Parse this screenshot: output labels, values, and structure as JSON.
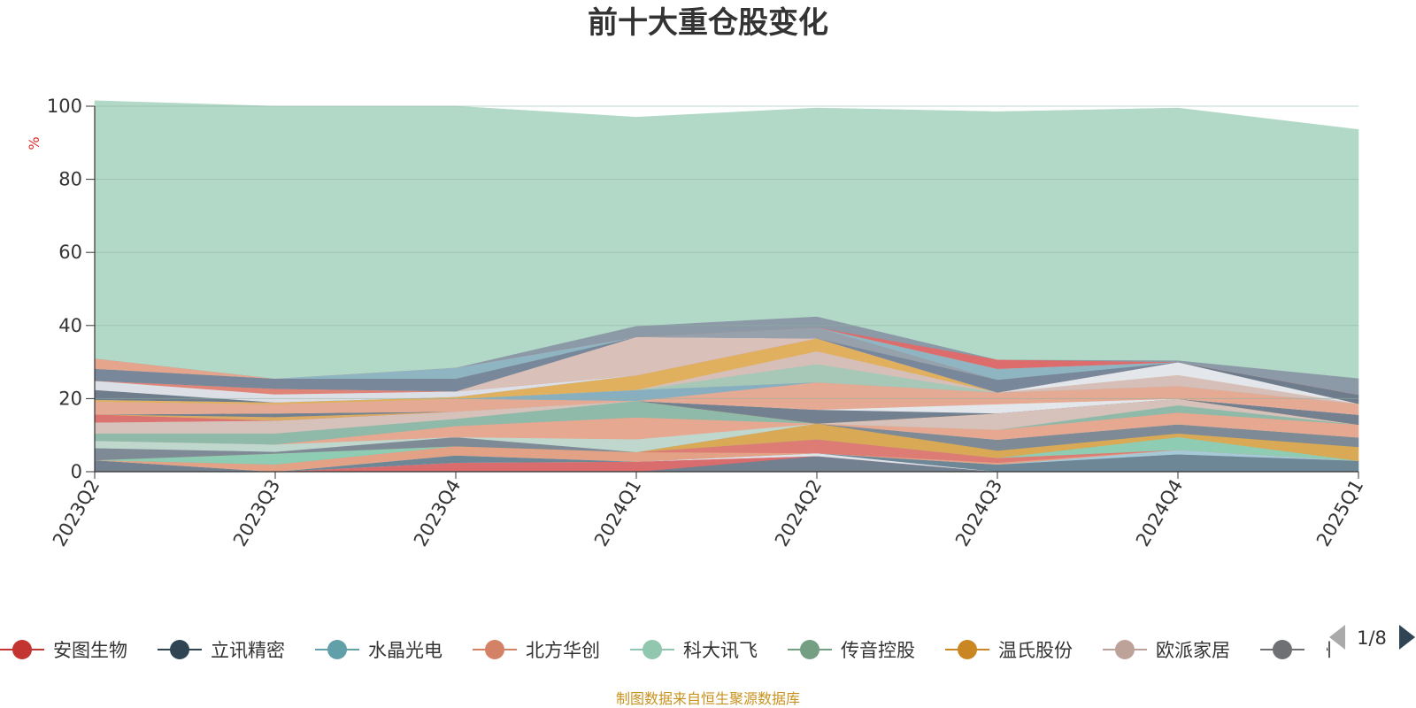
{
  "chart_data": {
    "type": "area",
    "stacked": true,
    "title": "前十大重仓股变化",
    "ylabel": "%",
    "ylim": [
      0,
      100
    ],
    "yticks": [
      0,
      20,
      40,
      60,
      80,
      100
    ],
    "categories": [
      "2023Q2",
      "2023Q3",
      "2023Q4",
      "2024Q1",
      "2024Q2",
      "2024Q3",
      "2024Q4",
      "2025Q1"
    ],
    "grid": true,
    "legend_position": "bottom",
    "series": [
      {
        "color": "#73808f",
        "values": [
          3.2,
          0.0,
          0.0,
          0.0,
          4.3,
          0.0,
          0.0,
          0.0
        ]
      },
      {
        "color": "#d96c6c",
        "values": [
          0.0,
          0.0,
          2.5,
          2.8,
          0.0,
          0.0,
          0.0,
          0.0
        ]
      },
      {
        "color": "#dfe3ea",
        "values": [
          0.0,
          0.0,
          0.0,
          0.0,
          0.8,
          0.0,
          0.0,
          0.0
        ]
      },
      {
        "color": "#6d8796",
        "values": [
          0.0,
          0.0,
          2.0,
          0.0,
          0.0,
          2.0,
          4.8,
          3.0
        ]
      },
      {
        "color": "#a6c9d8",
        "values": [
          0.0,
          0.0,
          0.0,
          0.0,
          0.0,
          0.0,
          1.2,
          0.0
        ]
      },
      {
        "color": "#e3a286",
        "values": [
          0.0,
          2.0,
          2.5,
          2.6,
          0.0,
          0.5,
          0.0,
          0.0
        ]
      },
      {
        "color": "#dd7c74",
        "values": [
          0.0,
          0.0,
          0.0,
          0.0,
          3.8,
          1.3,
          0.0,
          0.0
        ]
      },
      {
        "color": "#8ecdb4",
        "values": [
          0.0,
          3.0,
          0.0,
          0.0,
          0.0,
          0.0,
          3.5,
          0.0
        ]
      },
      {
        "color": "#d9a955",
        "values": [
          0.0,
          0.0,
          0.0,
          0.0,
          4.3,
          2.0,
          1.0,
          3.8
        ]
      },
      {
        "color": "#7f8a97",
        "values": [
          3.3,
          0.5,
          2.5,
          0.0,
          0.0,
          3.0,
          2.5,
          2.6
        ]
      },
      {
        "color": "#c0d7ce",
        "values": [
          2.0,
          2.0,
          0.0,
          3.5,
          0.0,
          0.0,
          0.0,
          0.0
        ]
      },
      {
        "color": "#e6a890",
        "values": [
          0.0,
          0.0,
          3.0,
          6.0,
          0.0,
          2.7,
          3.2,
          3.5
        ]
      },
      {
        "color": "#8fb9a8",
        "values": [
          2.0,
          3.0,
          2.0,
          4.5,
          0.0,
          0.0,
          2.0,
          0.0
        ]
      },
      {
        "color": "#d6c2ba",
        "values": [
          3.0,
          3.5,
          2.0,
          0.0,
          0.0,
          4.5,
          1.8,
          0.0
        ]
      },
      {
        "color": "#db7370",
        "values": [
          2.2,
          0.0,
          0.0,
          0.0,
          0.0,
          0.0,
          0.0,
          0.0
        ]
      },
      {
        "color": "#d9ab64",
        "values": [
          0.0,
          1.0,
          0.0,
          0.0,
          0.0,
          0.0,
          0.0,
          0.0
        ]
      },
      {
        "color": "#73808f",
        "values": [
          0.0,
          1.0,
          0.0,
          0.0,
          3.8,
          0.0,
          0.0,
          2.7
        ]
      },
      {
        "color": "#e3e6eb",
        "values": [
          0.0,
          0.0,
          0.0,
          0.0,
          0.0,
          2.5,
          0.0,
          0.0
        ]
      },
      {
        "color": "#e5aa93",
        "values": [
          3.5,
          2.5,
          3.5,
          0.0,
          7.5,
          3.2,
          3.5,
          3.0
        ]
      },
      {
        "color": "#88afc0",
        "values": [
          0.0,
          0.0,
          0.0,
          3.0,
          0.0,
          0.0,
          0.0,
          0.0
        ]
      },
      {
        "color": "#a8c8b7",
        "values": [
          0.0,
          0.0,
          0.0,
          0.0,
          5.0,
          0.0,
          0.0,
          0.0
        ]
      },
      {
        "color": "#d6bfb8",
        "values": [
          0.0,
          0.0,
          0.0,
          0.0,
          3.5,
          0.0,
          3.0,
          0.0
        ]
      },
      {
        "color": "#e1b05e",
        "values": [
          0.5,
          0.5,
          0.5,
          4.0,
          3.5,
          0.0,
          0.0,
          0.0
        ]
      },
      {
        "color": "#e3e6eb",
        "values": [
          0.0,
          0.0,
          0.0,
          0.0,
          0.0,
          0.0,
          3.5,
          0.0
        ]
      },
      {
        "color": "#6e7c8b",
        "values": [
          2.7,
          0.0,
          0.0,
          0.0,
          0.0,
          0.0,
          0.0,
          2.5
        ]
      },
      {
        "color": "#dcdfe6",
        "values": [
          2.5,
          2.2,
          1.5,
          0.0,
          0.0,
          0.0,
          0.0,
          0.0
        ]
      },
      {
        "color": "#e08478",
        "values": [
          0.0,
          1.5,
          0.0,
          0.0,
          0.0,
          0.0,
          0.0,
          0.0
        ]
      },
      {
        "color": "#d9c0b9",
        "values": [
          0.0,
          0.0,
          0.0,
          10.5,
          0.0,
          0.0,
          0.0,
          0.0
        ]
      },
      {
        "color": "#78889a",
        "values": [
          3.3,
          2.8,
          3.5,
          0.0,
          0.0,
          3.5,
          0.0,
          0.0
        ]
      },
      {
        "color": "#96a1ac",
        "values": [
          0.0,
          0.0,
          0.0,
          0.0,
          3.0,
          0.0,
          0.0,
          0.0
        ]
      },
      {
        "color": "#8fb5c3",
        "values": [
          0.0,
          0.0,
          3.0,
          0.0,
          0.0,
          3.0,
          0.0,
          0.0
        ]
      },
      {
        "color": "#e5a48c",
        "values": [
          2.8,
          0.0,
          0.0,
          0.0,
          0.0,
          0.0,
          0.0,
          0.0
        ]
      },
      {
        "color": "#dd6c6c",
        "values": [
          0.0,
          0.0,
          0.0,
          0.0,
          0.0,
          2.5,
          0.0,
          0.0
        ]
      },
      {
        "color": "#8b9aa6",
        "values": [
          0.0,
          0.0,
          0.0,
          3.0,
          3.0,
          0.0,
          0.5,
          4.5
        ]
      },
      {
        "color": "#b2d9c7",
        "values": [
          70.5,
          74.5,
          71.5,
          57.1,
          57.0,
          67.8,
          69.0,
          68.0
        ]
      }
    ]
  },
  "legend": {
    "items": [
      {
        "label": "安图生物",
        "color": "#c23531"
      },
      {
        "label": "立讯精密",
        "color": "#2f4554"
      },
      {
        "label": "水晶光电",
        "color": "#61a0a8"
      },
      {
        "label": "北方华创",
        "color": "#d48265"
      },
      {
        "label": "科大讯飞",
        "color": "#91c7ae"
      },
      {
        "label": "传音控股",
        "color": "#749f83"
      },
      {
        "label": "温氏股份",
        "color": "#ca8622"
      },
      {
        "label": "欧派家居",
        "color": "#bda29a"
      },
      {
        "label": "州",
        "color": "#6e7074"
      }
    ],
    "page_indicator": "1/8"
  },
  "source_note": "制图数据来自恒生聚源数据库"
}
